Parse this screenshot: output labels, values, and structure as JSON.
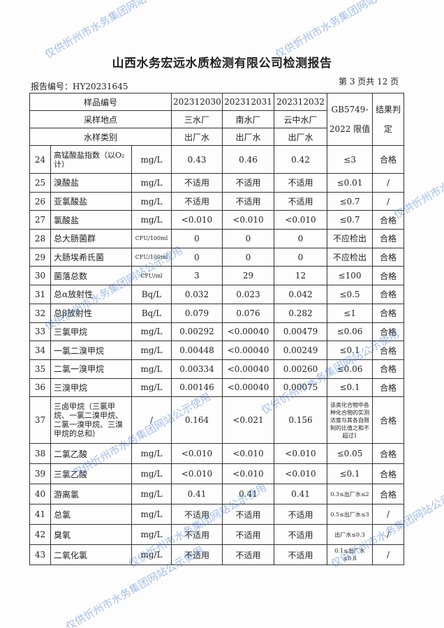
{
  "title": "山西水务宏远水质检测有限公司检测报告",
  "report_no": "报告编号：HY20231645",
  "page_no": "第 3 页共 12 页",
  "watermark": "仅供忻州市水务集团网站公示使用",
  "header": {
    "sample_no_label": "样品编号",
    "location_label": "采样地点",
    "type_label": "水样类别",
    "limit_label": "GB5749-2022 限值",
    "result_label": "结果判定",
    "samples": [
      {
        "no": "202312030",
        "location": "三水厂",
        "type": "出厂水"
      },
      {
        "no": "202312031",
        "location": "南水厂",
        "type": "出厂水"
      },
      {
        "no": "202312032",
        "location": "云中水厂",
        "type": "出厂水"
      }
    ]
  },
  "rows": [
    {
      "no": "24",
      "name": "高锰酸盐指数（以O₂计）",
      "unit": "mg/L",
      "v": [
        "0.43",
        "0.46",
        "0.42"
      ],
      "limit": "≤3",
      "result": "合格"
    },
    {
      "no": "25",
      "name": "溴酸盐",
      "unit": "mg/L",
      "v": [
        "不适用",
        "不适用",
        "不适用"
      ],
      "limit": "≤0.01",
      "result": "/"
    },
    {
      "no": "26",
      "name": "亚氯酸盐",
      "unit": "mg/L",
      "v": [
        "不适用",
        "不适用",
        "不适用"
      ],
      "limit": "≤0.7",
      "result": "/"
    },
    {
      "no": "27",
      "name": "氯酸盐",
      "unit": "mg/L",
      "v": [
        "<0.010",
        "<0.010",
        "<0.010"
      ],
      "limit": "≤0.7",
      "result": "合格"
    },
    {
      "no": "28",
      "name": "总大肠菌群",
      "unit": "CFU/100ml",
      "v": [
        "0",
        "0",
        "0"
      ],
      "limit": "不应检出",
      "result": "合格"
    },
    {
      "no": "29",
      "name": "大肠埃希氏菌",
      "unit": "CFU/100ml",
      "v": [
        "0",
        "0",
        "0"
      ],
      "limit": "不应检出",
      "result": "合格"
    },
    {
      "no": "30",
      "name": "菌落总数",
      "unit": "CFU/ml",
      "v": [
        "3",
        "29",
        "12"
      ],
      "limit": "≤100",
      "result": "合格"
    },
    {
      "no": "31",
      "name": "总α放射性",
      "unit": "Bq/L",
      "v": [
        "0.032",
        "0.023",
        "0.042"
      ],
      "limit": "≤0.5",
      "result": "合格"
    },
    {
      "no": "32",
      "name": "总β放射性",
      "unit": "Bq/L",
      "v": [
        "0.079",
        "0.076",
        "0.282"
      ],
      "limit": "≤1",
      "result": "合格"
    },
    {
      "no": "33",
      "name": "三氯甲烷",
      "unit": "mg/L",
      "v": [
        "0.00292",
        "<0.00040",
        "0.00479"
      ],
      "limit": "≤0.06",
      "result": "合格"
    },
    {
      "no": "34",
      "name": "一氯二溴甲烷",
      "unit": "mg/L",
      "v": [
        "0.00448",
        "<0.00040",
        "0.00249"
      ],
      "limit": "≤0.1",
      "result": "合格"
    },
    {
      "no": "35",
      "name": "二氯一溴甲烷",
      "unit": "mg/L",
      "v": [
        "0.00334",
        "<0.00040",
        "0.00260"
      ],
      "limit": "≤0.06",
      "result": "合格"
    },
    {
      "no": "36",
      "name": "三溴甲烷",
      "unit": "mg/L",
      "v": [
        "0.00146",
        "<0.00040",
        "0.00075"
      ],
      "limit": "≤0.1",
      "result": "合格"
    },
    {
      "no": "37",
      "name": "三卤甲烷（三氯甲烷、一氯二溴甲烷、二氯一溴甲烷、三溴甲烷的总和）",
      "unit": "/",
      "v": [
        "0.164",
        "<0.021",
        "0.156"
      ],
      "limit": "该类化合物中各种化合物的实测浓度与其各自限制的比值之和不超过1",
      "result": "合格"
    },
    {
      "no": "38",
      "name": "二氯乙酸",
      "unit": "mg/L",
      "v": [
        "<0.010",
        "<0.010",
        "<0.010"
      ],
      "limit": "≤0.05",
      "result": "合格"
    },
    {
      "no": "39",
      "name": "三氯乙酸",
      "unit": "mg/L",
      "v": [
        "<0.010",
        "<0.010",
        "<0.010"
      ],
      "limit": "≤0.1",
      "result": "合格"
    },
    {
      "no": "40",
      "name": "游离氯",
      "unit": "mg/L",
      "v": [
        "0.41",
        "0.41",
        "0.41"
      ],
      "limit": "0.3≤出厂水≤2",
      "result": "合格"
    },
    {
      "no": "41",
      "name": "总氯",
      "unit": "mg/L",
      "v": [
        "不适用",
        "不适用",
        "不适用"
      ],
      "limit": "0.5≤出厂水≤3",
      "result": "/"
    },
    {
      "no": "42",
      "name": "臭氧",
      "unit": "mg/L",
      "v": [
        "不适用",
        "不适用",
        "不适用"
      ],
      "limit": "出厂水≤0.3",
      "result": "/"
    },
    {
      "no": "43",
      "name": "二氧化氯",
      "unit": "mg/L",
      "v": [
        "不适用",
        "不适用",
        "不适用"
      ],
      "limit": "0.1≤出厂水≤0.8",
      "result": "/"
    }
  ]
}
